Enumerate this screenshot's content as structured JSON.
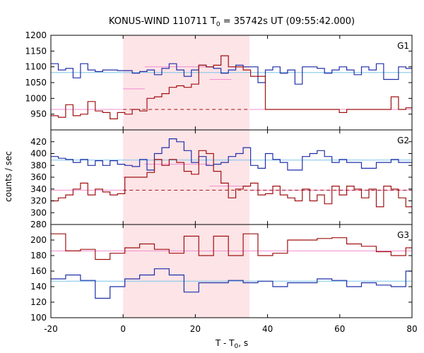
{
  "chart_data": {
    "type": "line",
    "title_prefix": "KONUS-WIND 110711 T",
    "title_sub": "0",
    "title_suffix": " = 35742s UT (09:55:42.000)",
    "xlabel_prefix": "T - T",
    "xlabel_sub": "0",
    "xlabel_suffix": ", s",
    "ylabel": "counts / sec",
    "xlim": [
      -20,
      80
    ],
    "xticks": [
      -20,
      0,
      20,
      40,
      60,
      80
    ],
    "highlight": [
      0,
      35
    ],
    "colors": {
      "blue": "#1f2fa8",
      "red": "#a01010",
      "cyan": "#7ac4e8",
      "pink": "#f08cd0",
      "shade": "#fde4e7",
      "frame": "#000000"
    },
    "panels": [
      {
        "label": "G1",
        "ylim": [
          900,
          1200
        ],
        "yticks": [
          950,
          1000,
          1050,
          1100,
          1150,
          1200
        ],
        "bin_start": -20,
        "bin_width": 2.048,
        "series": [
          {
            "color": "blue",
            "values": [
              1110,
              1090,
              1095,
              1065,
              1110,
              1090,
              1085,
              1090,
              1090,
              1088,
              1088,
              1080,
              1085,
              1090,
              1075,
              1095,
              1110,
              1090,
              1070,
              1090,
              1105,
              1100,
              1095,
              1080,
              1090,
              1105,
              1100,
              1100,
              1050,
              1090,
              1100,
              1080,
              1090,
              1045,
              1100,
              1100,
              1095,
              1080,
              1090,
              1100,
              1090,
              1075,
              1100,
              1090,
              1110,
              1060,
              1060,
              1100,
              1095,
              1100
            ]
          },
          {
            "color": "red",
            "values": [
              945,
              940,
              980,
              945,
              950,
              990,
              960,
              955,
              935,
              955,
              950,
              965,
              960,
              1000,
              1005,
              1015,
              1035,
              1040,
              1035,
              1045,
              1105,
              1100,
              1105,
              1135,
              1100,
              1100,
              1090,
              1070,
              1070,
              965,
              965,
              965,
              965,
              965,
              965,
              965,
              965,
              965,
              965,
              955,
              965,
              965,
              965,
              965,
              965,
              965,
              1005,
              965,
              970,
              965,
              965
            ]
          }
        ],
        "ref_lines": [
          {
            "color": "cyan",
            "style": "solid",
            "segments": [
              {
                "x0": -20,
                "x1": 80,
                "y": 1082
              }
            ]
          },
          {
            "color": "pink",
            "style": "solid",
            "segments": [
              {
                "x0": -20,
                "x1": 0,
                "y": 965
              },
              {
                "x0": 0,
                "x1": 6,
                "y": 1030
              },
              {
                "x0": 6,
                "x1": 24,
                "y": 1100
              },
              {
                "x0": 24,
                "x1": 30,
                "y": 1060
              },
              {
                "x0": 30,
                "x1": 35,
                "y": 1100
              },
              {
                "x0": 35,
                "x1": 80,
                "y": 965
              }
            ]
          },
          {
            "color": "red",
            "style": "dashed",
            "segments": [
              {
                "x0": 0,
                "x1": 35,
                "y": 965
              }
            ]
          }
        ]
      },
      {
        "label": "G2",
        "ylim": [
          280,
          440
        ],
        "yticks": [
          280,
          300,
          320,
          340,
          360,
          380,
          400,
          420
        ],
        "bin_start": -20,
        "bin_width": 2.048,
        "series": [
          {
            "color": "blue",
            "values": [
              395,
              392,
              390,
              385,
              390,
              380,
              388,
              380,
              388,
              382,
              380,
              378,
              390,
              372,
              400,
              410,
              425,
              420,
              405,
              385,
              395,
              380,
              382,
              385,
              395,
              400,
              410,
              380,
              375,
              400,
              390,
              385,
              372,
              372,
              395,
              400,
              405,
              395,
              385,
              390,
              385,
              385,
              375,
              375,
              385,
              385,
              390,
              385,
              385,
              375
            ]
          },
          {
            "color": "red",
            "values": [
              320,
              325,
              330,
              340,
              350,
              330,
              340,
              335,
              330,
              332,
              360,
              360,
              360,
              368,
              390,
              380,
              390,
              385,
              370,
              365,
              405,
              400,
              370,
              350,
              325,
              340,
              345,
              350,
              330,
              332,
              345,
              330,
              325,
              320,
              340,
              320,
              330,
              315,
              345,
              330,
              345,
              340,
              325,
              340,
              310,
              345,
              340,
              325,
              310,
              340
            ]
          }
        ],
        "ref_lines": [
          {
            "color": "cyan",
            "style": "solid",
            "segments": [
              {
                "x0": -20,
                "x1": 80,
                "y": 389
              }
            ]
          },
          {
            "color": "pink",
            "style": "solid",
            "segments": [
              {
                "x0": -20,
                "x1": 0,
                "y": 338
              },
              {
                "x0": 0,
                "x1": 6,
                "y": 360
              },
              {
                "x0": 6,
                "x1": 24,
                "y": 382
              },
              {
                "x0": 24,
                "x1": 35,
                "y": 345
              },
              {
                "x0": 35,
                "x1": 80,
                "y": 338
              }
            ]
          },
          {
            "color": "red",
            "style": "dashed",
            "segments": [
              {
                "x0": 0,
                "x1": 80,
                "y": 338
              }
            ]
          }
        ]
      },
      {
        "label": "G3",
        "ylim": [
          100,
          220
        ],
        "yticks": [
          100,
          120,
          140,
          160,
          180,
          200
        ],
        "bin_start": -20,
        "bin_width": 4.096,
        "series": [
          {
            "color": "blue",
            "values": [
              150,
              155,
              148,
              125,
              140,
              150,
              155,
              163,
              155,
              133,
              145,
              145,
              148,
              145,
              147,
              140,
              145,
              145,
              150,
              148,
              140,
              145,
              142,
              140,
              160,
              150,
              147,
              145,
              152,
              148
            ]
          },
          {
            "color": "red",
            "values": [
              208,
              186,
              188,
              175,
              183,
              190,
              195,
              188,
              183,
              205,
              180,
              205,
              180,
              208,
              180,
              183,
              200,
              200,
              202,
              203,
              195,
              192,
              185,
              180,
              190,
              193,
              183,
              192,
              195,
              185
            ]
          }
        ],
        "ref_lines": [
          {
            "color": "cyan",
            "style": "solid",
            "segments": [
              {
                "x0": -20,
                "x1": 80,
                "y": 147
              }
            ]
          },
          {
            "color": "pink",
            "style": "solid",
            "segments": [
              {
                "x0": -20,
                "x1": 80,
                "y": 186
              }
            ]
          }
        ]
      }
    ]
  }
}
